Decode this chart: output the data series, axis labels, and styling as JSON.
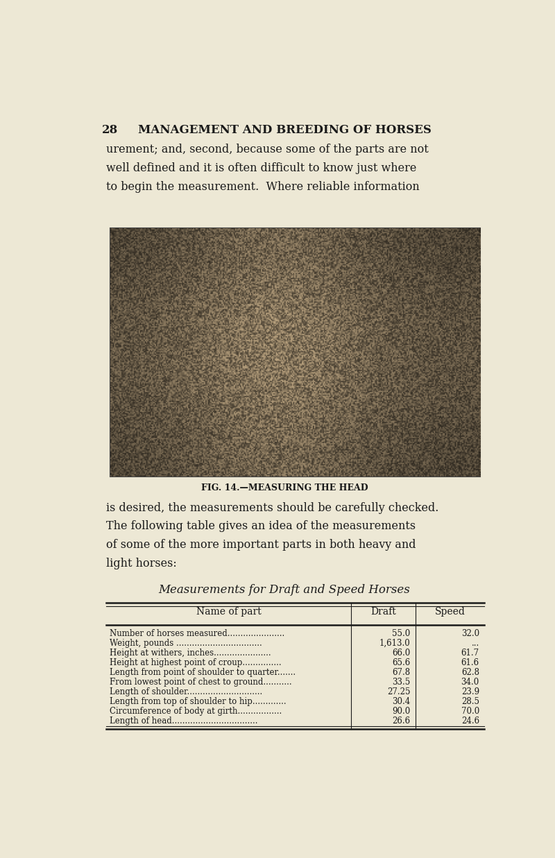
{
  "page_number": "28",
  "header": "MANAGEMENT AND BREEDING OF HORSES",
  "intro_text_lines": [
    "urement; and, second, because some of the parts are not",
    "well defined and it is often difficult to know just where",
    "to begin the measurement.  Where reliable information"
  ],
  "fig_caption": "FIG. 14.—MEASURING THE HEAD",
  "body_text_lines": [
    "is desired, the measurements should be carefully checked.",
    "The following table gives an idea of the measurements",
    "of some of the more important parts in both heavy and",
    "light horses:"
  ],
  "table_title": "Measurements for Draft and Speed Horses",
  "table_headers": [
    "Name of part",
    "Draft",
    "Speed"
  ],
  "table_rows": [
    [
      "Number of horses measured......................",
      "55.0",
      "32.0"
    ],
    [
      "Weight, pounds .................................",
      "1,613.0",
      "..."
    ],
    [
      "Height at withers, inches......................",
      "66.0",
      "61.7"
    ],
    [
      "Height at highest point of croup...............",
      "65.6",
      "61.6"
    ],
    [
      "Length from point of shoulder to quarter.......",
      "67.8",
      "62.8"
    ],
    [
      "From lowest point of chest to ground...........",
      "33.5",
      "34.0"
    ],
    [
      "Length of shoulder.............................",
      "27.25",
      "23.9"
    ],
    [
      "Length from top of shoulder to hip.............",
      "30.4",
      "28.5"
    ],
    [
      "Circumference of body at girth.................",
      "90.0",
      "70.0"
    ],
    [
      "Length of head.................................",
      "26.6",
      "24.6"
    ]
  ],
  "bg_color": "#EDE8D5",
  "text_color": "#1a1a1a",
  "line_color": "#1a1a1a"
}
